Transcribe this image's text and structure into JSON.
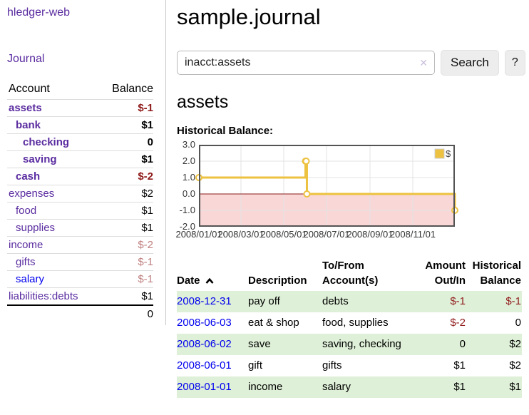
{
  "colors": {
    "purple": "#5a2ca0",
    "blue": "#0000ee",
    "negative": "#8f1a1a",
    "negative_muted": "#c08080",
    "stripe": "#dff0d8"
  },
  "sidebar": {
    "brand": "hledger-web",
    "nav": {
      "journal": "Journal"
    },
    "accounts_table": {
      "headers": {
        "account": "Account",
        "balance": "Balance"
      },
      "rows": [
        {
          "name": "assets",
          "level": 1,
          "bold": true,
          "balance": "$-1",
          "balance_style": "neg"
        },
        {
          "name": "bank",
          "level": 2,
          "bold": true,
          "balance": "$1",
          "balance_style": ""
        },
        {
          "name": "checking",
          "level": 3,
          "bold": true,
          "balance": "0",
          "balance_style": ""
        },
        {
          "name": "saving",
          "level": 3,
          "bold": true,
          "balance": "$1",
          "balance_style": ""
        },
        {
          "name": "cash",
          "level": 2,
          "bold": true,
          "balance": "$-2",
          "balance_style": "neg"
        },
        {
          "name": "expenses",
          "level": 1,
          "bold": false,
          "balance": "$2",
          "balance_style": ""
        },
        {
          "name": "food",
          "level": 2,
          "bold": false,
          "balance": "$1",
          "balance_style": ""
        },
        {
          "name": "supplies",
          "level": 2,
          "bold": false,
          "balance": "$1",
          "balance_style": ""
        },
        {
          "name": "income",
          "level": 1,
          "bold": false,
          "balance": "$-2",
          "balance_style": "negmuted"
        },
        {
          "name": "gifts",
          "level": 2,
          "bold": false,
          "balance": "$-1",
          "balance_style": "negmuted"
        },
        {
          "name": "salary",
          "level": 2,
          "bold": false,
          "balance": "$-1",
          "balance_style": "negmuted",
          "link": "unvisited"
        },
        {
          "name": "liabilities:debts",
          "level": 1,
          "bold": false,
          "balance": "$1",
          "balance_style": ""
        }
      ],
      "total": "0"
    }
  },
  "header": {
    "title": "sample.journal"
  },
  "search": {
    "value": "inacct:assets",
    "clear_icon": "✕",
    "search_label": "Search",
    "help_label": "?"
  },
  "account_page": {
    "title": "assets",
    "chart_label": "Historical Balance:"
  },
  "chart_data": {
    "type": "line",
    "title": "Historical Balance",
    "step": true,
    "grid": true,
    "ylim": [
      -2,
      3
    ],
    "y_ticks": [
      3,
      2,
      1,
      0,
      -1,
      -2
    ],
    "x_range": [
      "2008-01-01",
      "2008-12-31"
    ],
    "x_tick_labels": [
      "2008/01/01",
      "2008/03/01",
      "2008/05/01",
      "2008/07/01",
      "2008/09/01",
      "2008/11/01"
    ],
    "series": [
      {
        "name": "$",
        "color": "#edc240",
        "points": [
          {
            "x": "2008-01-01",
            "y": 1
          },
          {
            "x": "2008-06-01",
            "y": 2
          },
          {
            "x": "2008-06-02",
            "y": 2
          },
          {
            "x": "2008-06-03",
            "y": 0
          },
          {
            "x": "2008-12-31",
            "y": -1
          }
        ]
      }
    ],
    "legend": {
      "label": "$",
      "position": "top-right"
    },
    "negative_region_fill": "#f9d7d7",
    "zero_line_color": "#8b1a1a"
  },
  "register_table": {
    "headers": [
      "Date",
      "Description",
      "To/From Account(s)",
      "Amount Out/In",
      "Historical Balance"
    ],
    "sort": {
      "column": "Date",
      "direction": "asc"
    },
    "rows": [
      {
        "date": "2008-12-31",
        "description": "pay off",
        "accounts": "debts",
        "amount": "$-1",
        "amount_negative": true,
        "balance": "$-1",
        "balance_negative": true
      },
      {
        "date": "2008-06-03",
        "description": "eat & shop",
        "accounts": "food, supplies",
        "amount": "$-2",
        "amount_negative": true,
        "balance": "0",
        "balance_negative": false
      },
      {
        "date": "2008-06-02",
        "description": "save",
        "accounts": "saving, checking",
        "amount": "0",
        "amount_negative": false,
        "balance": "$2",
        "balance_negative": false
      },
      {
        "date": "2008-06-01",
        "description": "gift",
        "accounts": "gifts",
        "amount": "$1",
        "amount_negative": false,
        "balance": "$2",
        "balance_negative": false
      },
      {
        "date": "2008-01-01",
        "description": "income",
        "accounts": "salary",
        "amount": "$1",
        "amount_negative": false,
        "balance": "$1",
        "balance_negative": false
      }
    ]
  }
}
